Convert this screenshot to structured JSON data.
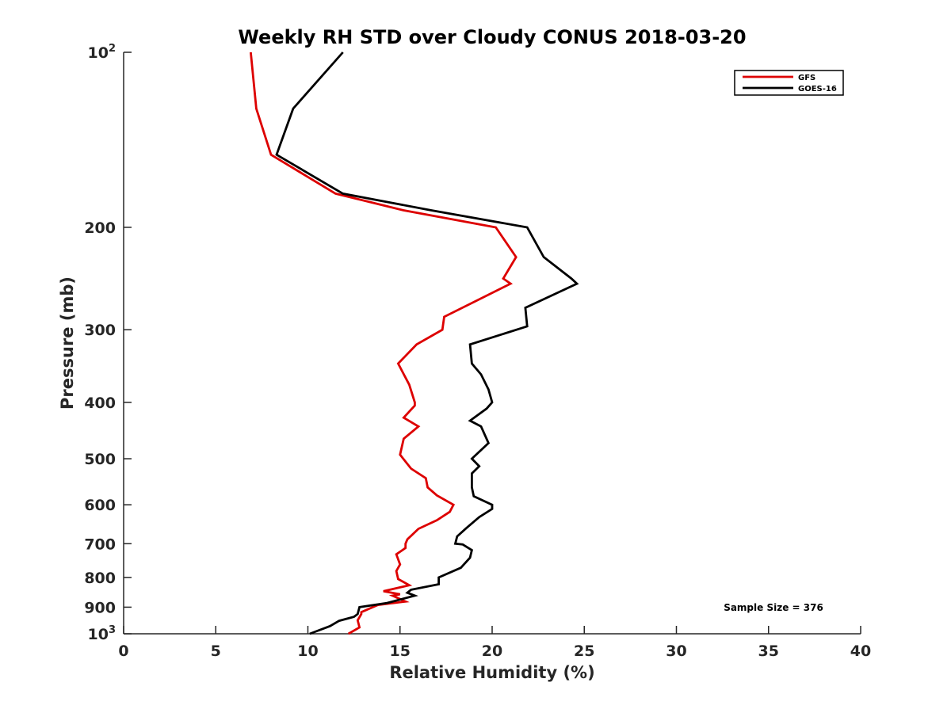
{
  "chart_data": {
    "type": "line",
    "title": "Weekly RH STD over Cloudy CONUS 2018-03-20",
    "xlabel": "Relative Humidity (%)",
    "ylabel": "Pressure (mb)",
    "xlim": [
      0,
      40
    ],
    "ylim": [
      100,
      1000
    ],
    "y_scale": "log",
    "y_reversed": true,
    "grid": false,
    "x_ticks": [
      "0",
      "5",
      "10",
      "15",
      "20",
      "25",
      "30",
      "35",
      "40"
    ],
    "y_ticks": [
      {
        "value": 100,
        "base": "10",
        "exp": "2"
      },
      {
        "value": 200,
        "base": "200",
        "exp": ""
      },
      {
        "value": 300,
        "base": "300",
        "exp": ""
      },
      {
        "value": 400,
        "base": "400",
        "exp": ""
      },
      {
        "value": 500,
        "base": "500",
        "exp": ""
      },
      {
        "value": 600,
        "base": "600",
        "exp": ""
      },
      {
        "value": 700,
        "base": "700",
        "exp": ""
      },
      {
        "value": 800,
        "base": "800",
        "exp": ""
      },
      {
        "value": 900,
        "base": "900",
        "exp": ""
      },
      {
        "value": 1000,
        "base": "10",
        "exp": "3"
      }
    ],
    "legend_position": "top-right",
    "annotation": "Sample Size = 376",
    "series": [
      {
        "name": "GFS",
        "color": "#dd0000",
        "points": [
          [
            6.9,
            100
          ],
          [
            7.2,
            125
          ],
          [
            8.0,
            150
          ],
          [
            11.5,
            175
          ],
          [
            15.2,
            187
          ],
          [
            20.2,
            200
          ],
          [
            21.3,
            225
          ],
          [
            20.6,
            245
          ],
          [
            21.0,
            250
          ],
          [
            17.4,
            285
          ],
          [
            17.3,
            300
          ],
          [
            15.9,
            318
          ],
          [
            14.9,
            343
          ],
          [
            15.5,
            373
          ],
          [
            15.8,
            400
          ],
          [
            15.8,
            405
          ],
          [
            15.2,
            425
          ],
          [
            16.0,
            440
          ],
          [
            15.2,
            462
          ],
          [
            15.0,
            492
          ],
          [
            15.6,
            520
          ],
          [
            16.4,
            540
          ],
          [
            16.5,
            560
          ],
          [
            17.0,
            578
          ],
          [
            17.9,
            600
          ],
          [
            17.7,
            617
          ],
          [
            17.0,
            638
          ],
          [
            16.0,
            660
          ],
          [
            15.4,
            688
          ],
          [
            15.3,
            700
          ],
          [
            15.3,
            712
          ],
          [
            14.8,
            730
          ],
          [
            15.0,
            760
          ],
          [
            14.8,
            780
          ],
          [
            14.9,
            805
          ],
          [
            15.5,
            825
          ],
          [
            14.1,
            845
          ],
          [
            15.0,
            855
          ],
          [
            14.6,
            860
          ],
          [
            15.3,
            880
          ],
          [
            13.8,
            892
          ],
          [
            12.9,
            918
          ],
          [
            12.9,
            925
          ],
          [
            12.7,
            948
          ],
          [
            12.8,
            975
          ],
          [
            12.2,
            1000
          ]
        ]
      },
      {
        "name": "GOES-16",
        "color": "#000000",
        "points": [
          [
            11.9,
            100
          ],
          [
            9.2,
            125
          ],
          [
            8.3,
            150
          ],
          [
            11.9,
            175
          ],
          [
            16.7,
            187
          ],
          [
            21.9,
            200
          ],
          [
            22.8,
            225
          ],
          [
            24.3,
            245
          ],
          [
            24.6,
            250
          ],
          [
            21.8,
            275
          ],
          [
            21.9,
            296
          ],
          [
            18.8,
            318
          ],
          [
            18.9,
            343
          ],
          [
            19.4,
            358
          ],
          [
            19.8,
            380
          ],
          [
            20.0,
            400
          ],
          [
            19.7,
            410
          ],
          [
            18.8,
            430
          ],
          [
            19.4,
            440
          ],
          [
            19.8,
            470
          ],
          [
            18.9,
            500
          ],
          [
            19.3,
            515
          ],
          [
            18.9,
            530
          ],
          [
            18.9,
            560
          ],
          [
            19.0,
            580
          ],
          [
            20.0,
            600
          ],
          [
            20.0,
            610
          ],
          [
            19.3,
            630
          ],
          [
            18.6,
            658
          ],
          [
            18.1,
            680
          ],
          [
            18.0,
            700
          ],
          [
            18.4,
            702
          ],
          [
            18.9,
            718
          ],
          [
            18.8,
            740
          ],
          [
            18.3,
            770
          ],
          [
            17.1,
            800
          ],
          [
            17.1,
            822
          ],
          [
            15.6,
            840
          ],
          [
            15.4,
            850
          ],
          [
            15.8,
            860
          ],
          [
            14.3,
            885
          ],
          [
            12.8,
            900
          ],
          [
            12.7,
            925
          ],
          [
            12.5,
            935
          ],
          [
            11.7,
            950
          ],
          [
            11.2,
            970
          ],
          [
            10.1,
            1000
          ]
        ]
      }
    ]
  }
}
